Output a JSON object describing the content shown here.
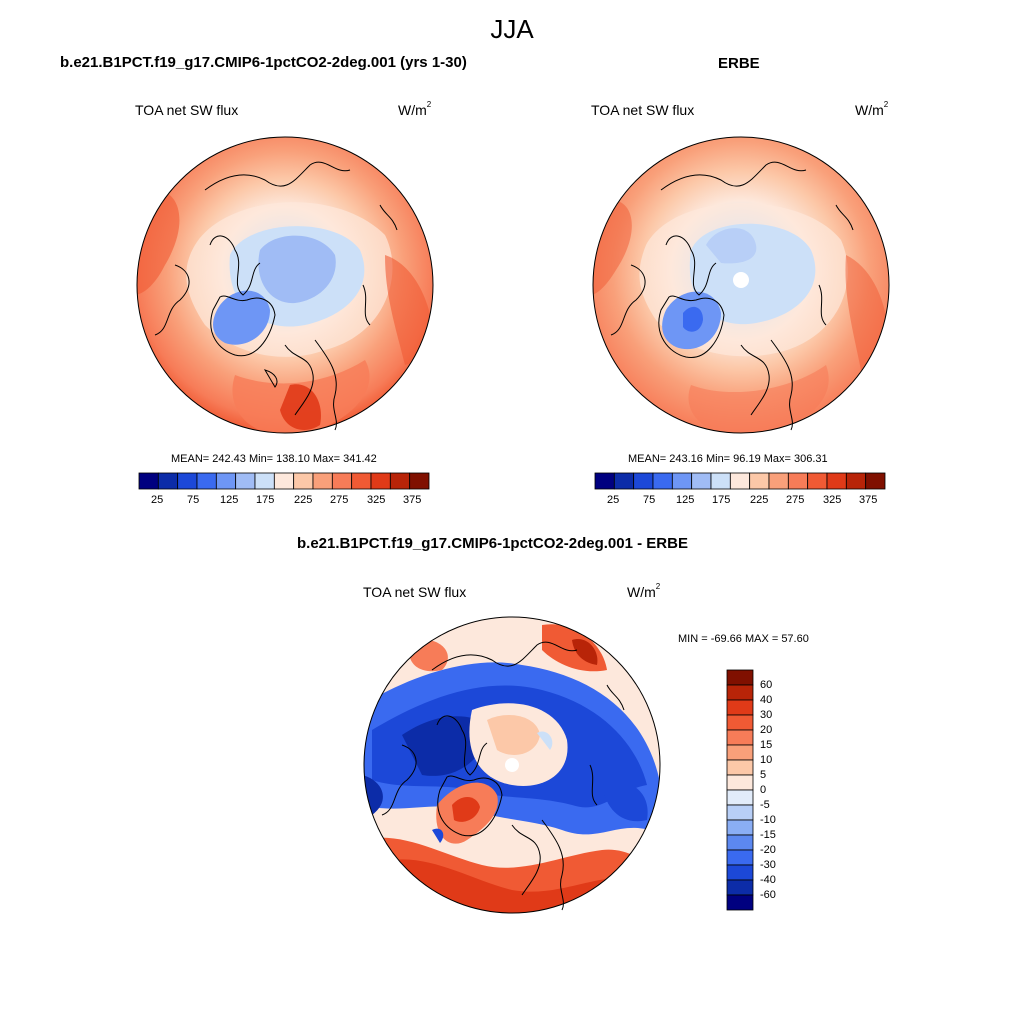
{
  "figure_title": "JJA",
  "panels": {
    "model": {
      "title": "b.e21.B1PCT.f19_g17.CMIP6-1pctCO2-2deg.001 (yrs 1-30)",
      "left_label": "TOA net SW flux",
      "unit": "W/m",
      "unit_exp": "2",
      "stats": "MEAN= 242.43  Min= 138.10  Max= 341.42"
    },
    "obs": {
      "title": "ERBE",
      "left_label": "TOA net SW flux",
      "unit": "W/m",
      "unit_exp": "2",
      "stats": "MEAN= 243.16  Min=  96.19  Max= 306.31"
    },
    "diff": {
      "title": "b.e21.B1PCT.f19_g17.CMIP6-1pctCO2-2deg.001 - ERBE",
      "left_label": "TOA net SW flux",
      "unit": "W/m",
      "unit_exp": "2",
      "stats": "MIN = -69.66 MAX =  57.60"
    }
  },
  "colorbars": {
    "abs_labels": [
      "25",
      "75",
      "125",
      "175",
      "225",
      "275",
      "325",
      "375"
    ],
    "abs_colors": [
      "#000080",
      "#0c2ca8",
      "#1c48d8",
      "#3a6af0",
      "#6e96f5",
      "#a0bcf5",
      "#cce0f8",
      "#fde8dc",
      "#fcc8a8",
      "#f9a07a",
      "#f77c58",
      "#f05a34",
      "#e03a18",
      "#b82408",
      "#801000"
    ],
    "diff_labels": [
      "60",
      "40",
      "30",
      "20",
      "15",
      "10",
      "5",
      "0",
      "-5",
      "-10",
      "-15",
      "-20",
      "-30",
      "-40",
      "-60"
    ],
    "diff_colors": [
      "#801000",
      "#b82408",
      "#e03a18",
      "#f05a34",
      "#f77c58",
      "#f9a07a",
      "#fcc8a8",
      "#fde8dc",
      "#e2ecfa",
      "#b8cff7",
      "#8aaef5",
      "#5c88f0",
      "#3a6af0",
      "#1c48d8",
      "#0c2ca8",
      "#000080"
    ]
  }
}
